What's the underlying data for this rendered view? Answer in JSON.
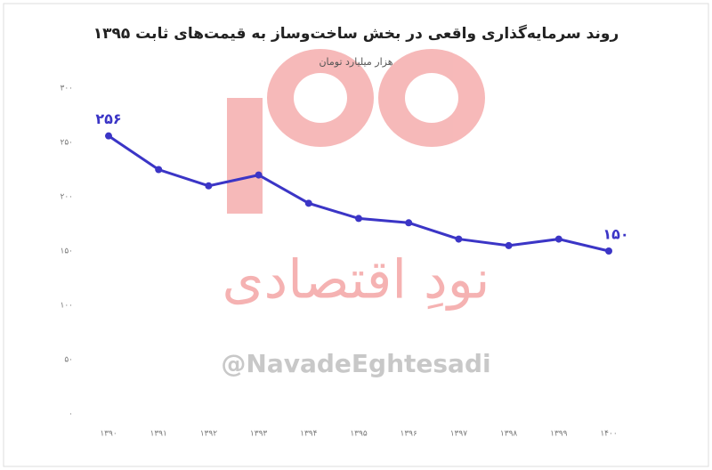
{
  "chart_data": {
    "type": "line",
    "title": "روند سرمایه‌گذاری واقعی در بخش ساخت‌وساز به قیمت‌های ثابت ۱۳۹۵",
    "subtitle": "هزار میلیارد تومان",
    "watermark": "نودِ اقتصادی",
    "watermark_handle": "@NavadeEghtesadi",
    "categories": [
      "۱۳۹۰",
      "۱۳۹۱",
      "۱۳۹۲",
      "۱۳۹۳",
      "۱۳۹۴",
      "۱۳۹۵",
      "۱۳۹۶",
      "۱۳۹۷",
      "۱۳۹۸",
      "۱۳۹۹",
      "۱۴۰۰"
    ],
    "series": [
      {
        "name": "سرمایه‌گذاری",
        "color": "#3b35c6",
        "values": [
          256,
          225,
          210,
          220,
          194,
          180,
          176,
          161,
          155,
          161,
          150
        ],
        "value_labels": [
          "۲۵۶",
          null,
          null,
          null,
          null,
          null,
          null,
          null,
          null,
          null,
          "۱۵۰"
        ]
      }
    ],
    "ylim": [
      0,
      300
    ],
    "yticks": [
      {
        "value": 0,
        "label": "۰"
      },
      {
        "value": 50,
        "label": "۵۰"
      },
      {
        "value": 100,
        "label": "۱۰۰"
      },
      {
        "value": 150,
        "label": "۱۵۰"
      },
      {
        "value": 200,
        "label": "۲۰۰"
      },
      {
        "value": 250,
        "label": "۲۵۰"
      },
      {
        "value": 300,
        "label": "۳۰۰"
      }
    ],
    "grid": false
  }
}
